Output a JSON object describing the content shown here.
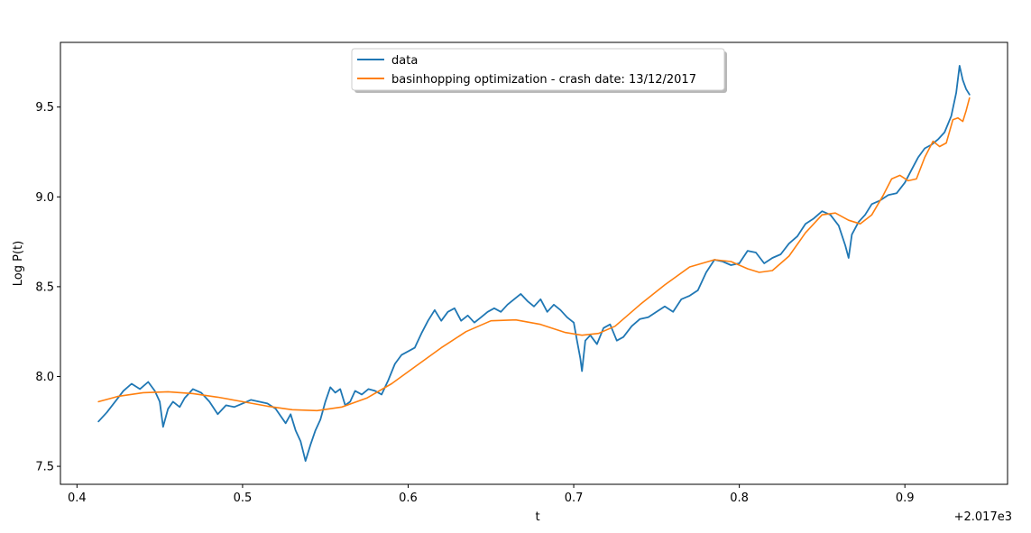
{
  "chart_data": {
    "type": "line",
    "xlabel": "t",
    "ylabel": "Log P(t)",
    "x_offset_label": "+2.017e3",
    "xlim": [
      0.39,
      0.962
    ],
    "ylim": [
      7.4,
      9.86
    ],
    "x_ticks": [
      0.4,
      0.5,
      0.6,
      0.7,
      0.8,
      0.9
    ],
    "x_tick_labels": [
      "0.4",
      "0.5",
      "0.6",
      "0.7",
      "0.8",
      "0.9"
    ],
    "y_ticks": [
      7.5,
      8.0,
      8.5,
      9.0,
      9.5
    ],
    "y_tick_labels": [
      "7.5",
      "8.0",
      "8.5",
      "9.0",
      "9.5"
    ],
    "grid": false,
    "legend_position": "top-center",
    "series": [
      {
        "name": "data",
        "color": "#1f77b4",
        "x": [
          0.413,
          0.418,
          0.423,
          0.428,
          0.433,
          0.438,
          0.443,
          0.447,
          0.45,
          0.452,
          0.455,
          0.458,
          0.462,
          0.465,
          0.47,
          0.475,
          0.48,
          0.485,
          0.49,
          0.495,
          0.5,
          0.505,
          0.51,
          0.515,
          0.52,
          0.523,
          0.526,
          0.529,
          0.532,
          0.535,
          0.538,
          0.541,
          0.544,
          0.547,
          0.55,
          0.553,
          0.556,
          0.559,
          0.562,
          0.565,
          0.568,
          0.572,
          0.576,
          0.58,
          0.584,
          0.588,
          0.592,
          0.596,
          0.6,
          0.604,
          0.608,
          0.612,
          0.616,
          0.62,
          0.624,
          0.628,
          0.632,
          0.636,
          0.64,
          0.644,
          0.648,
          0.652,
          0.656,
          0.66,
          0.664,
          0.668,
          0.672,
          0.676,
          0.68,
          0.684,
          0.688,
          0.692,
          0.696,
          0.7,
          0.702,
          0.704,
          0.705,
          0.707,
          0.71,
          0.714,
          0.718,
          0.722,
          0.726,
          0.73,
          0.735,
          0.74,
          0.745,
          0.75,
          0.755,
          0.76,
          0.765,
          0.77,
          0.775,
          0.78,
          0.785,
          0.79,
          0.795,
          0.8,
          0.805,
          0.81,
          0.815,
          0.82,
          0.825,
          0.83,
          0.835,
          0.84,
          0.845,
          0.85,
          0.855,
          0.86,
          0.864,
          0.866,
          0.868,
          0.872,
          0.876,
          0.88,
          0.885,
          0.89,
          0.895,
          0.9,
          0.904,
          0.908,
          0.912,
          0.916,
          0.92,
          0.924,
          0.928,
          0.931,
          0.933,
          0.935,
          0.937,
          0.939
        ],
        "values": [
          7.75,
          7.8,
          7.86,
          7.92,
          7.96,
          7.93,
          7.97,
          7.92,
          7.86,
          7.72,
          7.82,
          7.86,
          7.83,
          7.88,
          7.93,
          7.91,
          7.86,
          7.79,
          7.84,
          7.83,
          7.85,
          7.87,
          7.86,
          7.85,
          7.82,
          7.78,
          7.74,
          7.79,
          7.7,
          7.64,
          7.53,
          7.62,
          7.7,
          7.76,
          7.86,
          7.94,
          7.91,
          7.93,
          7.84,
          7.86,
          7.92,
          7.9,
          7.93,
          7.92,
          7.9,
          7.98,
          8.07,
          8.12,
          8.14,
          8.16,
          8.24,
          8.31,
          8.37,
          8.31,
          8.36,
          8.38,
          8.31,
          8.34,
          8.3,
          8.33,
          8.36,
          8.38,
          8.36,
          8.4,
          8.43,
          8.46,
          8.42,
          8.39,
          8.43,
          8.36,
          8.4,
          8.37,
          8.33,
          8.3,
          8.2,
          8.1,
          8.03,
          8.2,
          8.23,
          8.18,
          8.27,
          8.29,
          8.2,
          8.22,
          8.28,
          8.32,
          8.33,
          8.36,
          8.39,
          8.36,
          8.43,
          8.45,
          8.48,
          8.58,
          8.65,
          8.64,
          8.62,
          8.63,
          8.7,
          8.69,
          8.63,
          8.66,
          8.68,
          8.74,
          8.78,
          8.85,
          8.88,
          8.92,
          8.9,
          8.84,
          8.73,
          8.66,
          8.79,
          8.86,
          8.9,
          8.96,
          8.98,
          9.01,
          9.02,
          9.08,
          9.15,
          9.22,
          9.27,
          9.29,
          9.32,
          9.36,
          9.45,
          9.58,
          9.73,
          9.65,
          9.6,
          9.57
        ]
      },
      {
        "name": "basinhopping optimization - crash date: 13/12/2017",
        "color": "#ff7f0e",
        "x": [
          0.413,
          0.425,
          0.44,
          0.455,
          0.47,
          0.485,
          0.5,
          0.515,
          0.53,
          0.545,
          0.56,
          0.575,
          0.59,
          0.605,
          0.62,
          0.635,
          0.65,
          0.665,
          0.68,
          0.695,
          0.705,
          0.715,
          0.725,
          0.74,
          0.755,
          0.77,
          0.785,
          0.795,
          0.805,
          0.812,
          0.82,
          0.83,
          0.84,
          0.85,
          0.858,
          0.866,
          0.873,
          0.88,
          0.887,
          0.892,
          0.897,
          0.902,
          0.907,
          0.912,
          0.917,
          0.921,
          0.925,
          0.929,
          0.932,
          0.935,
          0.937,
          0.939
        ],
        "values": [
          7.86,
          7.89,
          7.91,
          7.915,
          7.905,
          7.885,
          7.86,
          7.835,
          7.815,
          7.81,
          7.83,
          7.88,
          7.96,
          8.06,
          8.16,
          8.25,
          8.31,
          8.315,
          8.29,
          8.245,
          8.23,
          8.24,
          8.28,
          8.4,
          8.51,
          8.61,
          8.65,
          8.64,
          8.6,
          8.58,
          8.59,
          8.67,
          8.8,
          8.9,
          8.91,
          8.87,
          8.85,
          8.9,
          9.01,
          9.1,
          9.12,
          9.09,
          9.1,
          9.22,
          9.31,
          9.28,
          9.3,
          9.43,
          9.44,
          9.42,
          9.48,
          9.55
        ]
      }
    ]
  }
}
